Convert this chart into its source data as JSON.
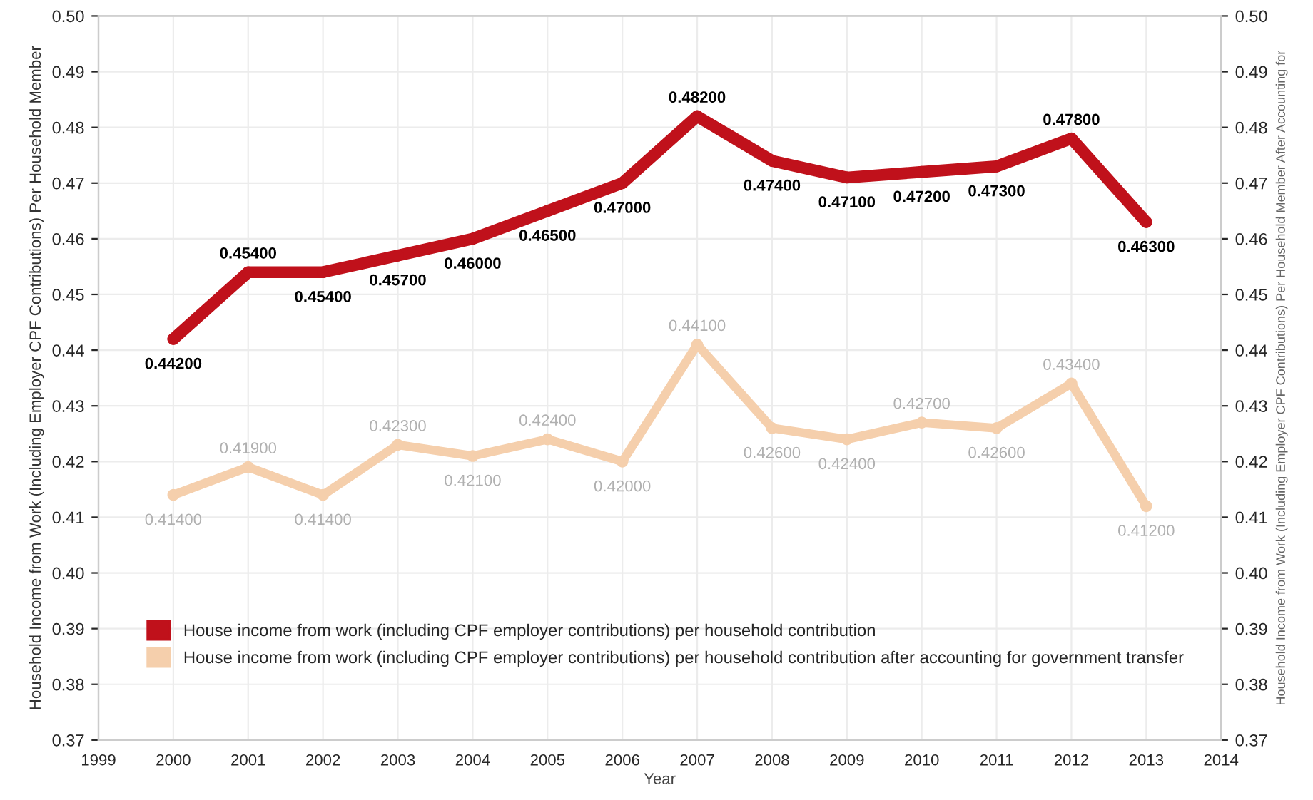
{
  "chart_data": {
    "type": "line",
    "xlabel": "Year",
    "ylabel": "Household Income from Work (Including Employer CPF Contributions) Per Household Member",
    "y2label": "Household Income from Work (Including Employer CPF Contributions) Per Household Member After Accounting for",
    "x": [
      2000,
      2001,
      2002,
      2003,
      2004,
      2005,
      2006,
      2007,
      2008,
      2009,
      2010,
      2011,
      2012,
      2013
    ],
    "series": [
      {
        "name": "House income from work (including CPF employer contributions) per household contribution",
        "color": "#c0111b",
        "values": [
          0.442,
          0.454,
          0.454,
          0.457,
          0.46,
          0.465,
          0.47,
          0.482,
          0.474,
          0.471,
          0.472,
          0.473,
          0.478,
          0.463
        ],
        "value_labels": [
          "0.44200",
          "0.45400",
          "0.45400",
          "0.45700",
          "0.46000",
          "0.46500",
          "0.47000",
          "0.48200",
          "0.47400",
          "0.47100",
          "0.47200",
          "0.47300",
          "0.47800",
          "0.46300"
        ]
      },
      {
        "name": "House income from work (including CPF employer contributions) per household contribution after accounting for government transfer",
        "color": "#f5cfac",
        "values": [
          0.414,
          0.419,
          0.414,
          0.423,
          0.421,
          0.424,
          0.42,
          0.441,
          0.426,
          0.424,
          0.427,
          0.426,
          0.434,
          0.412
        ],
        "value_labels": [
          "0.41400",
          "0.41900",
          "0.41400",
          "0.42300",
          "0.42100",
          "0.42400",
          "0.42000",
          "0.44100",
          "0.42600",
          "0.42400",
          "0.42700",
          "0.42600",
          "0.43400",
          "0.41200"
        ]
      }
    ],
    "xlim": [
      1999,
      2014
    ],
    "xticks": [
      1999,
      2000,
      2001,
      2002,
      2003,
      2004,
      2005,
      2006,
      2007,
      2008,
      2009,
      2010,
      2011,
      2012,
      2013,
      2014
    ],
    "ylim": [
      0.37,
      0.5
    ],
    "yticks": [
      {
        "value": 0.37,
        "label": "0.37"
      },
      {
        "value": 0.38,
        "label": "0.38"
      },
      {
        "value": 0.39,
        "label": "0.39"
      },
      {
        "value": 0.4,
        "label": "0.40"
      },
      {
        "value": 0.41,
        "label": "0.41"
      },
      {
        "value": 0.42,
        "label": "0.42"
      },
      {
        "value": 0.43,
        "label": "0.43"
      },
      {
        "value": 0.44,
        "label": "0.44"
      },
      {
        "value": 0.45,
        "label": "0.45"
      },
      {
        "value": 0.46,
        "label": "0.46"
      },
      {
        "value": 0.47,
        "label": "0.47"
      },
      {
        "value": 0.48,
        "label": "0.48"
      },
      {
        "value": 0.49,
        "label": "0.49"
      },
      {
        "value": 0.5,
        "label": "0.50"
      }
    ],
    "y2lim": [
      0.37,
      0.5
    ],
    "y2ticks": [
      {
        "value": 0.37,
        "label": "0.37"
      },
      {
        "value": 0.38,
        "label": "0.38"
      },
      {
        "value": 0.39,
        "label": "0.39"
      },
      {
        "value": 0.4,
        "label": "0.40"
      },
      {
        "value": 0.41,
        "label": "0.41"
      },
      {
        "value": 0.42,
        "label": "0.42"
      },
      {
        "value": 0.43,
        "label": "0.43"
      },
      {
        "value": 0.44,
        "label": "0.44"
      },
      {
        "value": 0.45,
        "label": "0.45"
      },
      {
        "value": 0.46,
        "label": "0.46"
      },
      {
        "value": 0.47,
        "label": "0.47"
      },
      {
        "value": 0.48,
        "label": "0.48"
      },
      {
        "value": 0.49,
        "label": "0.49"
      },
      {
        "value": 0.5,
        "label": "0.50"
      }
    ],
    "grid": true,
    "legend": "bottom left",
    "marker": "circle",
    "line_style": "solid"
  }
}
